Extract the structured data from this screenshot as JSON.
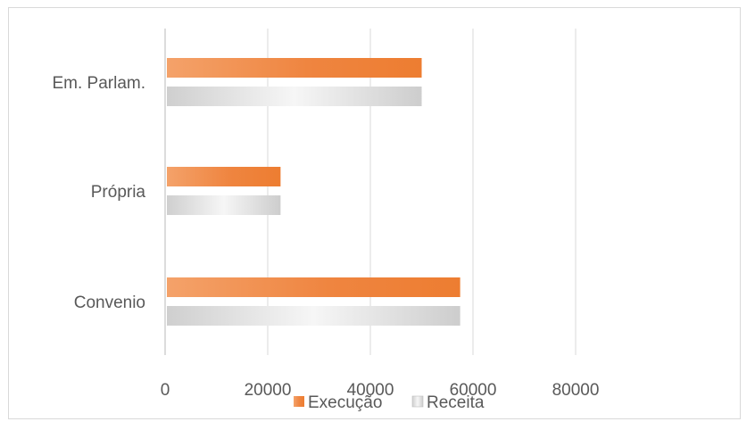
{
  "chart_data": {
    "type": "bar",
    "orientation": "horizontal",
    "title": "",
    "xlabel": "",
    "ylabel": "",
    "categories": [
      "Em. Parlam.",
      "Própria",
      "Convenio"
    ],
    "series": [
      {
        "name": "Execução",
        "values": [
          50000,
          22500,
          57500
        ],
        "color": "#ed7d31"
      },
      {
        "name": "Receita",
        "values": [
          50000,
          22500,
          57500
        ],
        "color": "#d0d0d0"
      }
    ],
    "xlim": [
      0,
      100000
    ],
    "xticks": [
      "0",
      "20000",
      "40000",
      "60000",
      "80000"
    ],
    "grid": "vertical",
    "legend_position": "bottom"
  }
}
